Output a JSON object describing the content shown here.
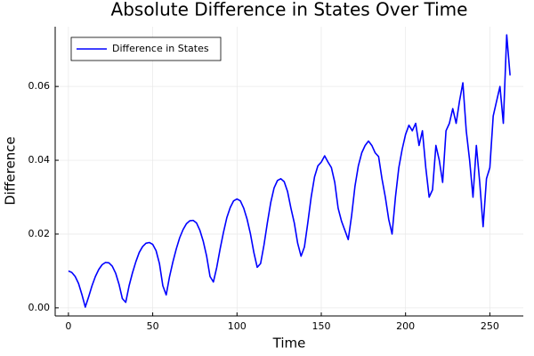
{
  "chart_data": {
    "type": "line",
    "title": "Absolute Difference in States Over Time",
    "x_label": "Time",
    "y_label": "Difference",
    "x": [
      0,
      2,
      4,
      6,
      8,
      10,
      12,
      14,
      16,
      18,
      20,
      22,
      24,
      26,
      28,
      30,
      32,
      34,
      36,
      38,
      40,
      42,
      44,
      46,
      48,
      50,
      52,
      54,
      56,
      58,
      60,
      62,
      64,
      66,
      68,
      70,
      72,
      74,
      76,
      78,
      80,
      82,
      84,
      86,
      88,
      90,
      92,
      94,
      96,
      98,
      100,
      102,
      104,
      106,
      108,
      110,
      112,
      114,
      116,
      118,
      120,
      122,
      124,
      126,
      128,
      130,
      132,
      134,
      136,
      138,
      140,
      142,
      144,
      146,
      148,
      150,
      152,
      154,
      156,
      158,
      160,
      162,
      164,
      166,
      168,
      170,
      172,
      174,
      176,
      178,
      180,
      182,
      184,
      186,
      188,
      190,
      192,
      194,
      196,
      198,
      200,
      202,
      204,
      206,
      208,
      210,
      212,
      214,
      216,
      218,
      220,
      222,
      224,
      226,
      228,
      230,
      232,
      234,
      236,
      238,
      240,
      242,
      244,
      246,
      248,
      250,
      252,
      254,
      256,
      258,
      260,
      262
    ],
    "series": [
      {
        "name": "Difference in States",
        "color": "#0000ff",
        "values": [
          0.01,
          0.0096,
          0.0085,
          0.0066,
          0.0036,
          0.0002,
          0.003,
          0.006,
          0.0085,
          0.0104,
          0.0117,
          0.0123,
          0.0122,
          0.0113,
          0.0094,
          0.0064,
          0.0025,
          0.0015,
          0.006,
          0.0095,
          0.0125,
          0.015,
          0.0166,
          0.0175,
          0.0177,
          0.0172,
          0.0155,
          0.012,
          0.006,
          0.0035,
          0.0085,
          0.0125,
          0.016,
          0.019,
          0.0212,
          0.0228,
          0.0236,
          0.0237,
          0.023,
          0.021,
          0.018,
          0.014,
          0.0085,
          0.007,
          0.011,
          0.016,
          0.0205,
          0.0245,
          0.0272,
          0.029,
          0.0295,
          0.029,
          0.027,
          0.024,
          0.02,
          0.015,
          0.011,
          0.012,
          0.017,
          0.023,
          0.0285,
          0.0325,
          0.0345,
          0.035,
          0.0342,
          0.0315,
          0.027,
          0.023,
          0.0175,
          0.014,
          0.0165,
          0.023,
          0.03,
          0.0355,
          0.0385,
          0.0395,
          0.0412,
          0.0395,
          0.038,
          0.034,
          0.027,
          0.0235,
          0.021,
          0.0185,
          0.025,
          0.033,
          0.0385,
          0.042,
          0.044,
          0.0452,
          0.044,
          0.042,
          0.041,
          0.035,
          0.03,
          0.024,
          0.02,
          0.03,
          0.038,
          0.043,
          0.047,
          0.0495,
          0.048,
          0.05,
          0.044,
          0.048,
          0.038,
          0.03,
          0.032,
          0.044,
          0.04,
          0.034,
          0.048,
          0.05,
          0.054,
          0.05,
          0.056,
          0.061,
          0.048,
          0.04,
          0.03,
          0.044,
          0.034,
          0.022,
          0.035,
          0.038,
          0.052,
          0.056,
          0.06,
          0.05,
          0.074,
          0.063
        ]
      }
    ],
    "xlim": [
      -7.86,
      269.86
    ],
    "xticks": [
      0,
      50,
      100,
      150,
      200,
      250
    ],
    "ylim": [
      -0.0022,
      0.0762
    ],
    "yticks": [
      {
        "value": 0,
        "label": "0.00"
      },
      {
        "value": 0.02,
        "label": "0.02"
      },
      {
        "value": 0.04,
        "label": "0.04"
      },
      {
        "value": 0.06,
        "label": "0.06"
      }
    ],
    "grid": true,
    "legend": "top-left"
  }
}
